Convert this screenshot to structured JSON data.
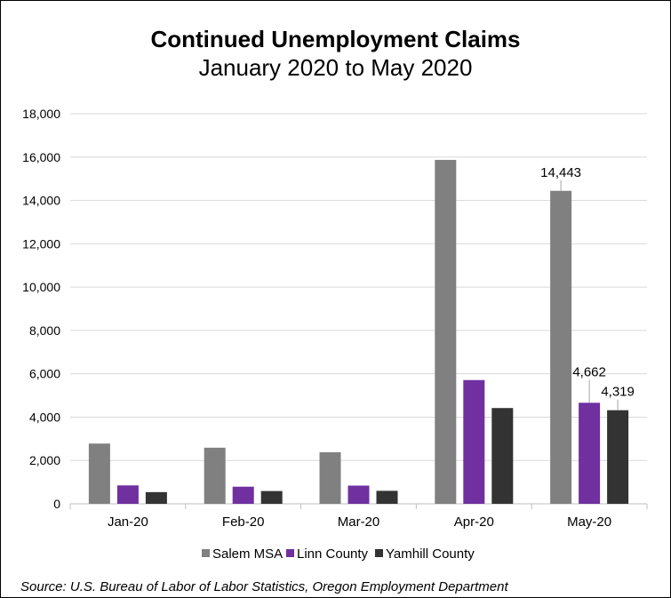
{
  "chart_data": {
    "type": "bar",
    "title": "Continued Unemployment Claims",
    "subtitle": "January 2020 to May 2020",
    "categories": [
      "Jan-20",
      "Feb-20",
      "Mar-20",
      "Apr-20",
      "May-20"
    ],
    "series": [
      {
        "name": "Salem MSA",
        "color": "#808080",
        "values": [
          2780,
          2590,
          2380,
          15870,
          14443
        ]
      },
      {
        "name": "Linn County",
        "color": "#7030A0",
        "values": [
          850,
          790,
          840,
          5710,
          4662
        ]
      },
      {
        "name": "Yamhill County",
        "color": "#333333",
        "values": [
          540,
          590,
          600,
          4420,
          4319
        ]
      }
    ],
    "data_labels": [
      {
        "series": 0,
        "category": 4,
        "text": "14,443"
      },
      {
        "series": 1,
        "category": 4,
        "text": "4,662"
      },
      {
        "series": 2,
        "category": 4,
        "text": "4,319"
      }
    ],
    "ylim": [
      0,
      18000
    ],
    "yticks": [
      "0",
      "2,000",
      "4,000",
      "6,000",
      "8,000",
      "10,000",
      "12,000",
      "14,000",
      "16,000",
      "18,000"
    ],
    "grid": true,
    "legend_position": "bottom"
  },
  "source": "Source: U.S. Bureau of Labor of Labor Statistics, Oregon Employment Department"
}
